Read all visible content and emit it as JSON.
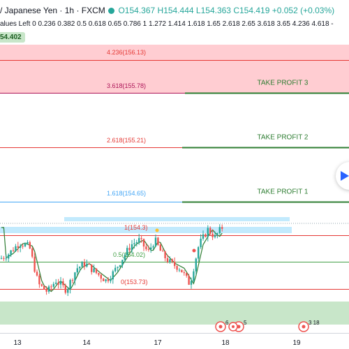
{
  "header": {
    "symbol": "/ Japanese Yen",
    "interval": "1h",
    "source": "FXCM",
    "open": "O154.367",
    "high": "H154.444",
    "low": "L154.363",
    "close": "C154.419",
    "change": "+0.052 (+0.03%)",
    "fib_values_text": "alues Left 0 0.236 0.382 0.5 0.618 0.65 0.786 1 1.272 1.414 1.618 1.65 2.618 2.65 3.618 3.65 4.236 4.618 -",
    "price_tag": "54.402"
  },
  "colors": {
    "up": "#26a69a",
    "down": "#ef5350",
    "fib_red": "#e53935",
    "fib_blue": "#42a5f5",
    "fib_green": "#43a047",
    "fib_magenta": "#ad1457",
    "take_profit": "#2e7d32",
    "zone_red": "#ffcdd2",
    "zone_green": "#c8e6c9",
    "zone_blue": "#b3e5fc"
  },
  "chart_data": {
    "type": "candlestick",
    "instrument": "/ Japanese Yen",
    "timeframe": "1h",
    "x_tick_labels": [
      "13",
      "14",
      "17",
      "18",
      "19"
    ],
    "fib_levels": [
      {
        "ratio": 0,
        "price": 153.73,
        "label": "0(153.73)",
        "color": "#e53935"
      },
      {
        "ratio": 0.5,
        "price": 154.02,
        "label": "0.5(154.02)",
        "color": "#43a047"
      },
      {
        "ratio": 1,
        "price": 154.3,
        "label": "1(154.3)",
        "color": "#e53935"
      },
      {
        "ratio": 1.618,
        "price": 154.65,
        "label": "1.618(154.65)",
        "color": "#42a5f5"
      },
      {
        "ratio": 2.618,
        "price": 155.21,
        "label": "2.618(155.21)",
        "color": "#e53935"
      },
      {
        "ratio": 3.618,
        "price": 155.78,
        "label": "3.618(155.78)",
        "color": "#ad1457"
      },
      {
        "ratio": 4.236,
        "price": 156.13,
        "label": "4.236(156.13)",
        "color": "#e53935"
      }
    ],
    "take_profits": [
      {
        "label": "TAKE PROFIT 1",
        "price": 154.65
      },
      {
        "label": "TAKE PROFIT 2",
        "price": 155.21
      },
      {
        "label": "TAKE PROFIT 3",
        "price": 155.78
      }
    ],
    "event_markers": [
      {
        "label": "6",
        "day": "18"
      },
      {
        "label": "5",
        "day": "18"
      },
      {
        "label": "3 18",
        "day": "19"
      }
    ]
  }
}
